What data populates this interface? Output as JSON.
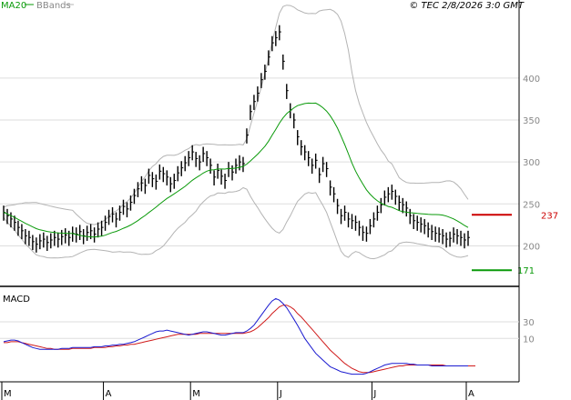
{
  "header": {
    "legend": [
      {
        "label": "MA20",
        "color": "#0a9a0a"
      },
      {
        "label": "BBands",
        "color": "#b4b4b4"
      }
    ],
    "source": "© TEC 2/8/2026 3:0 GMT"
  },
  "colors": {
    "candles": "#000000",
    "ma20": "#0a9a0a",
    "bbands": "#b4b4b4",
    "grid": "#dedede",
    "resistance": "#cc0000",
    "support": "#0a9a0a",
    "macd": "#1b1bd0",
    "signal": "#d01b1b"
  },
  "chart_data": [
    {
      "type": "candlestick",
      "title": "",
      "y_ticks": [
        200,
        250,
        300,
        350,
        400
      ],
      "ylim": [
        155,
        480
      ],
      "x_ticks": [
        "M",
        "A",
        "M",
        "J",
        "J",
        "A"
      ],
      "x_tick_index": [
        0,
        28,
        52,
        76,
        102,
        128
      ],
      "n_bars": 129,
      "legend_placement": "top-left",
      "close": [
        240,
        236,
        232,
        228,
        222,
        218,
        212,
        210,
        205,
        202,
        206,
        208,
        204,
        207,
        210,
        208,
        211,
        213,
        210,
        215,
        214,
        217,
        212,
        216,
        218,
        214,
        220,
        222,
        228,
        235,
        238,
        232,
        240,
        247,
        244,
        252,
        260,
        268,
        275,
        272,
        284,
        280,
        277,
        289,
        286,
        282,
        274,
        278,
        287,
        293,
        299,
        305,
        312,
        304,
        300,
        310,
        305,
        296,
        282,
        290,
        283,
        278,
        292,
        288,
        296,
        300,
        298,
        332,
        360,
        372,
        382,
        398,
        408,
        425,
        442,
        448,
        455,
        420,
        385,
        362,
        350,
        330,
        318,
        312,
        305,
        296,
        302,
        285,
        298,
        292,
        270,
        262,
        248,
        236,
        240,
        232,
        230,
        228,
        222,
        216,
        215,
        224,
        232,
        240,
        249,
        258,
        262,
        265,
        259,
        252,
        249,
        245,
        236,
        230,
        228,
        226,
        224,
        220,
        217,
        215,
        214,
        212,
        208,
        209,
        214,
        212,
        210,
        207,
        210
      ],
      "high": [
        248,
        244,
        240,
        236,
        230,
        226,
        220,
        218,
        213,
        210,
        214,
        216,
        212,
        215,
        218,
        216,
        219,
        221,
        218,
        223,
        222,
        225,
        220,
        224,
        226,
        222,
        228,
        230,
        236,
        243,
        246,
        240,
        248,
        255,
        252,
        260,
        268,
        276,
        283,
        280,
        292,
        288,
        285,
        297,
        294,
        290,
        282,
        286,
        295,
        301,
        307,
        313,
        320,
        312,
        308,
        318,
        313,
        304,
        290,
        298,
        291,
        286,
        300,
        296,
        304,
        308,
        306,
        340,
        368,
        380,
        390,
        406,
        416,
        433,
        450,
        456,
        463,
        428,
        393,
        370,
        358,
        338,
        326,
        320,
        313,
        304,
        310,
        293,
        306,
        300,
        278,
        270,
        256,
        244,
        248,
        240,
        238,
        236,
        230,
        224,
        223,
        232,
        240,
        248,
        257,
        266,
        270,
        273,
        267,
        260,
        257,
        253,
        244,
        238,
        236,
        234,
        232,
        228,
        225,
        223,
        222,
        220,
        216,
        217,
        222,
        220,
        218,
        215,
        218
      ],
      "low": [
        230,
        226,
        222,
        218,
        212,
        208,
        202,
        200,
        195,
        192,
        196,
        198,
        194,
        197,
        200,
        198,
        201,
        203,
        200,
        205,
        204,
        207,
        202,
        206,
        208,
        204,
        210,
        212,
        218,
        225,
        228,
        222,
        230,
        237,
        234,
        242,
        250,
        258,
        265,
        262,
        274,
        270,
        267,
        279,
        276,
        272,
        264,
        268,
        277,
        283,
        289,
        295,
        302,
        294,
        290,
        300,
        295,
        286,
        272,
        280,
        273,
        268,
        282,
        278,
        286,
        290,
        288,
        322,
        350,
        362,
        372,
        388,
        398,
        415,
        432,
        438,
        445,
        410,
        375,
        352,
        340,
        320,
        308,
        302,
        295,
        286,
        292,
        275,
        288,
        282,
        260,
        252,
        238,
        226,
        230,
        222,
        220,
        218,
        212,
        206,
        205,
        214,
        222,
        230,
        239,
        248,
        252,
        255,
        249,
        242,
        239,
        235,
        226,
        220,
        218,
        216,
        214,
        210,
        207,
        205,
        204,
        202,
        198,
        199,
        204,
        202,
        200,
        197,
        200
      ],
      "levels": {
        "resistance": 237,
        "support": 171
      }
    },
    {
      "type": "line",
      "title": "MACD",
      "y_ticks": [
        10,
        30
      ],
      "ylim": [
        -40,
        65
      ],
      "series": [
        {
          "name": "",
          "color": "#1b1bd0",
          "values": [
            6,
            7,
            8,
            8,
            7,
            5,
            3,
            1,
            -1,
            -2,
            -3,
            -3,
            -3,
            -3,
            -3,
            -3,
            -2,
            -2,
            -2,
            -1,
            -1,
            -1,
            -1,
            -1,
            -1,
            0,
            0,
            0,
            1,
            1,
            2,
            2,
            3,
            3,
            4,
            5,
            6,
            8,
            10,
            12,
            14,
            16,
            18,
            19,
            19,
            20,
            19,
            18,
            17,
            16,
            15,
            14,
            15,
            16,
            17,
            18,
            18,
            17,
            16,
            15,
            14,
            14,
            15,
            16,
            17,
            17,
            17,
            19,
            22,
            26,
            32,
            38,
            44,
            50,
            55,
            58,
            56,
            52,
            47,
            40,
            33,
            26,
            18,
            10,
            4,
            -2,
            -8,
            -12,
            -16,
            -20,
            -24,
            -26,
            -28,
            -30,
            -31,
            -32,
            -33,
            -33,
            -33,
            -33,
            -32,
            -30,
            -28,
            -26,
            -24,
            -22,
            -21,
            -20,
            -20,
            -20,
            -20,
            -20,
            -21,
            -21,
            -22,
            -22,
            -22,
            -22,
            -23,
            -23,
            -23,
            -23,
            -23,
            -23,
            -23,
            -23,
            -23,
            -23,
            -23
          ]
        },
        {
          "name": "",
          "color": "#d01b1b",
          "values": [
            5,
            5,
            6,
            6,
            6,
            5,
            4,
            3,
            2,
            1,
            0,
            -1,
            -2,
            -2,
            -3,
            -3,
            -3,
            -3,
            -3,
            -2,
            -2,
            -2,
            -2,
            -2,
            -2,
            -1,
            -1,
            -1,
            -1,
            0,
            0,
            1,
            1,
            2,
            2,
            3,
            3,
            4,
            5,
            6,
            7,
            8,
            9,
            10,
            11,
            12,
            13,
            14,
            15,
            15,
            15,
            15,
            15,
            15,
            16,
            16,
            16,
            16,
            16,
            16,
            16,
            16,
            16,
            16,
            16,
            16,
            16,
            17,
            18,
            20,
            23,
            27,
            31,
            35,
            40,
            44,
            48,
            50,
            50,
            48,
            45,
            40,
            36,
            31,
            26,
            21,
            16,
            11,
            6,
            1,
            -4,
            -8,
            -12,
            -16,
            -20,
            -23,
            -26,
            -28,
            -30,
            -31,
            -31,
            -31,
            -30,
            -29,
            -28,
            -27,
            -26,
            -25,
            -24,
            -23,
            -23,
            -22,
            -22,
            -22,
            -22,
            -22,
            -22,
            -22,
            -22,
            -22,
            -22,
            -22,
            -23,
            -23,
            -23,
            -23,
            -23,
            -23,
            -23,
            -23,
            -23
          ]
        }
      ]
    }
  ]
}
